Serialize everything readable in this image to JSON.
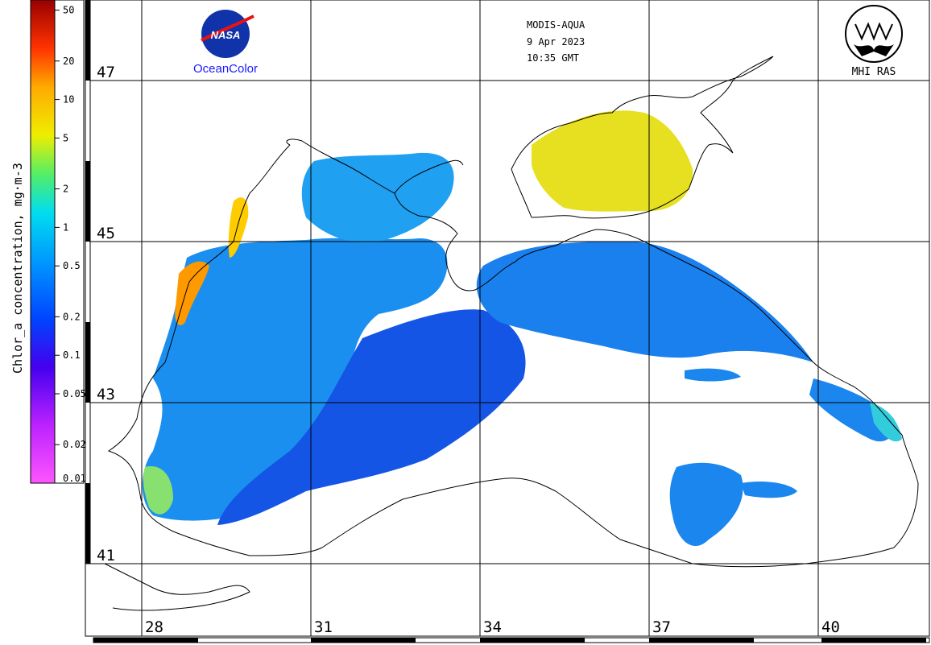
{
  "colorbar": {
    "title": "Chlor_a concentration, mg·m-3",
    "ticks": [
      {
        "label": "50",
        "value": 50
      },
      {
        "label": "20",
        "value": 20
      },
      {
        "label": "10",
        "value": 10
      },
      {
        "label": "5",
        "value": 5
      },
      {
        "label": "2",
        "value": 2
      },
      {
        "label": "1",
        "value": 1
      },
      {
        "label": "0.5",
        "value": 0.5
      },
      {
        "label": "0.2",
        "value": 0.2
      },
      {
        "label": "0.1",
        "value": 0.1
      },
      {
        "label": "0.05",
        "value": 0.05
      },
      {
        "label": "0.02",
        "value": 0.02
      },
      {
        "label": "0.01",
        "value": 0.01
      }
    ],
    "range": [
      0.01,
      60
    ],
    "scale": "log",
    "colors": [
      "#ff55ff",
      "#9900ee",
      "#0000ee",
      "#0077ff",
      "#00ddee",
      "#66ee55",
      "#eeee00",
      "#ff9900",
      "#ee0000",
      "#880000"
    ]
  },
  "map": {
    "latitudes": [
      {
        "label": "47",
        "value": 47
      },
      {
        "label": "45",
        "value": 45
      },
      {
        "label": "43",
        "value": 43
      },
      {
        "label": "41",
        "value": 41
      }
    ],
    "longitudes": [
      {
        "label": "28",
        "value": 28
      },
      {
        "label": "31",
        "value": 31
      },
      {
        "label": "34",
        "value": 34
      },
      {
        "label": "37",
        "value": 37
      },
      {
        "label": "40",
        "value": 40
      }
    ]
  },
  "info": {
    "sensor": "MODIS-AQUA",
    "date": "9 Apr 2023",
    "time": "10:35 GMT"
  },
  "logos": {
    "nasa_word": "NASA",
    "oceancolor": "OceanColor",
    "mhi": "MHI RAS"
  }
}
